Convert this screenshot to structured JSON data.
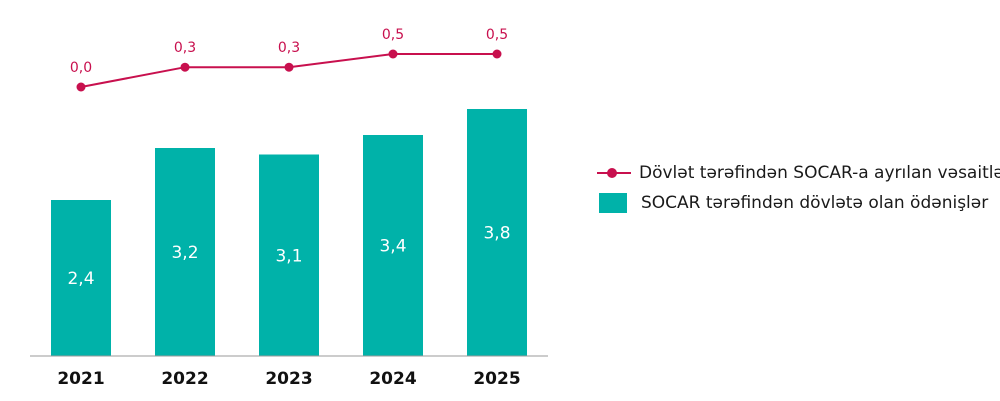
{
  "chart_data": {
    "type": "bar",
    "categories": [
      "2021",
      "2022",
      "2023",
      "2024",
      "2025"
    ],
    "series": [
      {
        "name": "SOCAR tərəfindən dövlətə olan ödənişlər",
        "kind": "bar",
        "values": [
          2.4,
          3.2,
          3.1,
          3.4,
          3.8
        ],
        "labels": [
          "2,4",
          "3,2",
          "3,1",
          "3,4",
          "3,8"
        ],
        "color": "#00b2a9"
      },
      {
        "name": "Dövlət tərəfindən SOCAR-a ayrılan vəsaitlər",
        "kind": "line",
        "values": [
          0.0,
          0.3,
          0.3,
          0.5,
          0.5
        ],
        "labels": [
          "0,0",
          "0,3",
          "0,3",
          "0,5",
          "0,5"
        ],
        "color": "#c8104e"
      }
    ],
    "legend_position": "right",
    "grid": false
  }
}
